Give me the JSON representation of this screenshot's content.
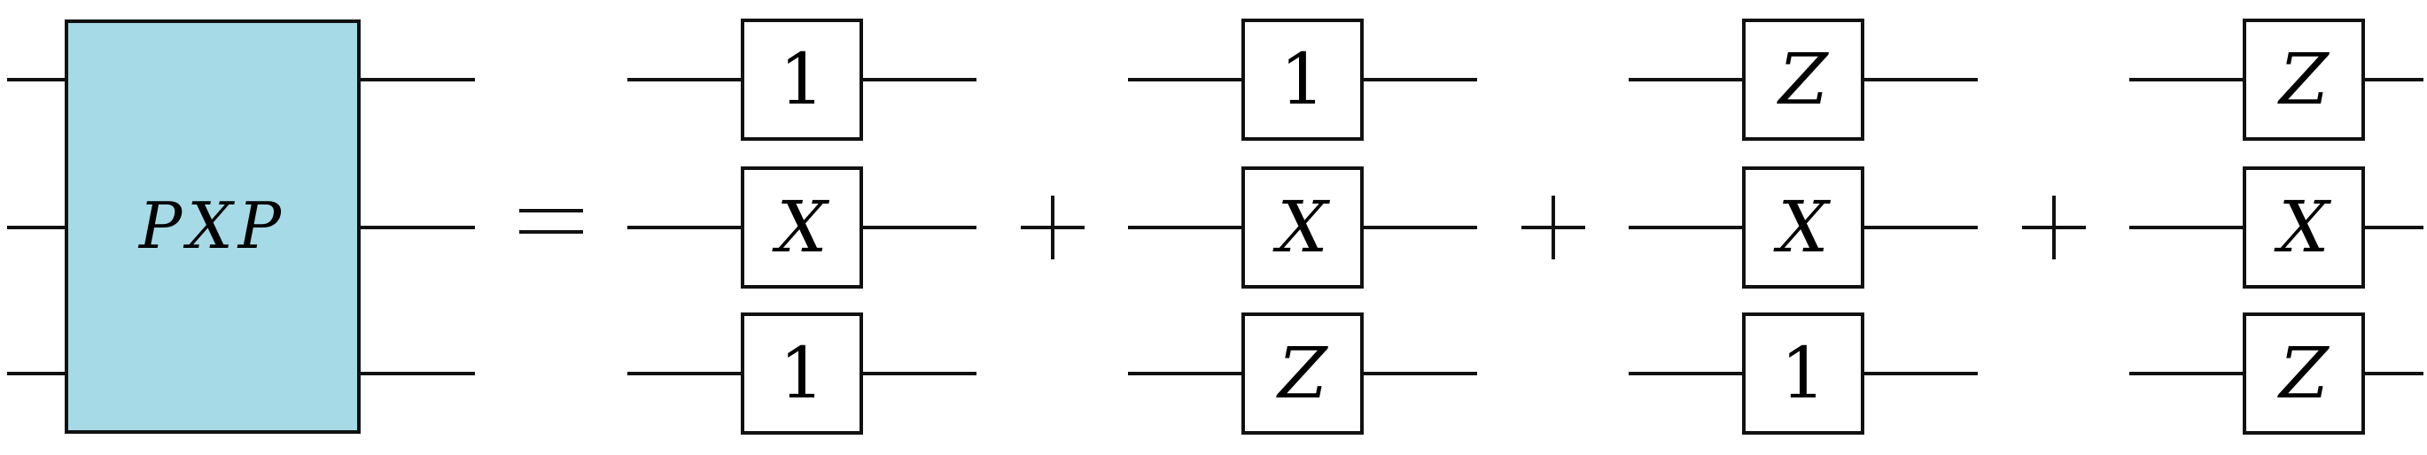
{
  "lhs": {
    "label": "PXP",
    "fill_color": "#a6dae6"
  },
  "equals_symbol": "=",
  "plus_symbol": "+",
  "terms": [
    {
      "gates": [
        "1",
        "X",
        "1"
      ]
    },
    {
      "gates": [
        "1",
        "X",
        "Z"
      ]
    },
    {
      "gates": [
        "Z",
        "X",
        "1"
      ]
    },
    {
      "gates": [
        "Z",
        "X",
        "Z"
      ]
    }
  ]
}
